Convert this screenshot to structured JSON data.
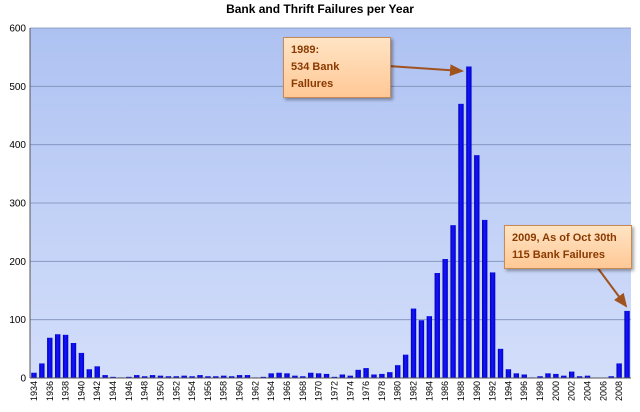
{
  "chart_data": {
    "type": "bar",
    "title": "Bank and Thrift Failures per Year",
    "xlabel": "",
    "ylabel": "",
    "ylim": [
      0,
      600
    ],
    "yticks": [
      0,
      100,
      200,
      300,
      400,
      500,
      600
    ],
    "grid": true,
    "x_tick_labels": [
      "1934",
      "1936",
      "1938",
      "1940",
      "1942",
      "1944",
      "1946",
      "1948",
      "1950",
      "1952",
      "1954",
      "1956",
      "1958",
      "1960",
      "1962",
      "1964",
      "1966",
      "1968",
      "1970",
      "1972",
      "1974",
      "1976",
      "1978",
      "1980",
      "1982",
      "1984",
      "1986",
      "1988",
      "1990",
      "1992",
      "1994",
      "1996",
      "1998",
      "2000",
      "2002",
      "2004",
      "2006",
      "2008"
    ],
    "categories": [
      "1934",
      "1935",
      "1936",
      "1937",
      "1938",
      "1939",
      "1940",
      "1941",
      "1942",
      "1943",
      "1944",
      "1945",
      "1946",
      "1947",
      "1948",
      "1949",
      "1950",
      "1951",
      "1952",
      "1953",
      "1954",
      "1955",
      "1956",
      "1957",
      "1958",
      "1959",
      "1960",
      "1961",
      "1962",
      "1963",
      "1964",
      "1965",
      "1966",
      "1967",
      "1968",
      "1969",
      "1970",
      "1971",
      "1972",
      "1973",
      "1974",
      "1975",
      "1976",
      "1977",
      "1978",
      "1979",
      "1980",
      "1981",
      "1982",
      "1983",
      "1984",
      "1985",
      "1986",
      "1987",
      "1988",
      "1989",
      "1990",
      "1991",
      "1992",
      "1993",
      "1994",
      "1995",
      "1996",
      "1997",
      "1998",
      "1999",
      "2000",
      "2001",
      "2002",
      "2003",
      "2004",
      "2005",
      "2006",
      "2007",
      "2008",
      "2009"
    ],
    "values": [
      9,
      25,
      69,
      75,
      74,
      60,
      43,
      15,
      20,
      5,
      2,
      1,
      2,
      5,
      3,
      5,
      4,
      3,
      3,
      4,
      3,
      5,
      3,
      3,
      4,
      3,
      5,
      5,
      1,
      2,
      8,
      9,
      8,
      4,
      3,
      9,
      8,
      7,
      2,
      6,
      4,
      14,
      17,
      6,
      7,
      10,
      22,
      40,
      119,
      99,
      106,
      180,
      204,
      262,
      470,
      534,
      382,
      271,
      181,
      50,
      15,
      8,
      6,
      1,
      3,
      8,
      7,
      4,
      11,
      3,
      4,
      0,
      0,
      3,
      25,
      115
    ],
    "bar_color": "#0000e6",
    "background_color": "#b7c9f3",
    "annotations": [
      {
        "line1": "1989:",
        "line2": "534 Bank Fallures",
        "points_to": "1989"
      },
      {
        "line1": "2009,  As of Oct 30th",
        "line2": "115 Bank Failures",
        "points_to": "2009"
      }
    ]
  }
}
